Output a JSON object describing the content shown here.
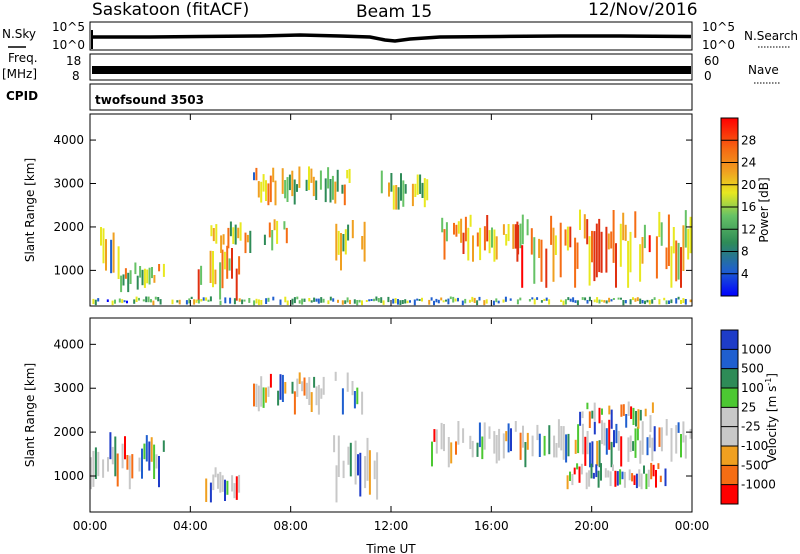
{
  "header": {
    "station": "Saskatoon (fitACF)",
    "beam": "Beam 15",
    "date": "12/Nov/2016"
  },
  "side_labels": {
    "nsky": "N.Sky",
    "freq": "Freq.",
    "freq_unit": "[MHz]",
    "cpid": "CPID",
    "nsearch": "N.Search",
    "nave": "Nave"
  },
  "strip": {
    "nsky_ticks": [
      "10^5",
      "10^0"
    ],
    "nsearch_ticks": [
      "10^5",
      "10^0"
    ],
    "freq_ticks": [
      "18",
      "8"
    ],
    "nave_ticks": [
      "60",
      "0"
    ],
    "cpid_text": "twofsound 3503"
  },
  "colors": {
    "power": [
      "#0000ff",
      "#1f5fcf",
      "#2e8b57",
      "#66c266",
      "#e8e820",
      "#f0a020",
      "#f56d14",
      "#e03010",
      "#ff0000"
    ],
    "velocity": [
      "#1e3cc8",
      "#1f5fcf",
      "#2e8b57",
      "#4cc832",
      "#c8c8c8",
      "#c8c8c8",
      "#f0a020",
      "#f56d14",
      "#ff0000"
    ],
    "ground_scatter": "#c0c0c0"
  },
  "chart_data": [
    {
      "type": "heatmap",
      "name": "power",
      "xlabel": "",
      "ylabel": "Slant Range [km]",
      "ylim": [
        180,
        4600
      ],
      "x_ticks": [
        "00:00",
        "04:00",
        "08:00",
        "12:00",
        "16:00",
        "20:00",
        "00:00"
      ],
      "y_ticks": [
        1000,
        2000,
        3000,
        4000
      ],
      "colorbar": {
        "label": "Power [dB]",
        "ticks": [
          "4",
          "8",
          "12",
          "16",
          "20",
          "24",
          "28"
        ]
      },
      "echo_regions": [
        {
          "t": [
            0.3,
            1.2
          ],
          "r": [
            800,
            2200
          ],
          "level": 0.25
        },
        {
          "t": [
            1.2,
            3.0
          ],
          "r": [
            500,
            1200
          ],
          "level": 0.3
        },
        {
          "t": [
            4.2,
            6.0
          ],
          "r": [
            300,
            1600
          ],
          "level": 0.55
        },
        {
          "t": [
            4.8,
            8.0
          ],
          "r": [
            1400,
            2200
          ],
          "level": 0.35
        },
        {
          "t": [
            6.5,
            10.5
          ],
          "r": [
            2500,
            3400
          ],
          "level": 0.3
        },
        {
          "t": [
            9.5,
            11.0
          ],
          "r": [
            1000,
            2400
          ],
          "level": 0.35
        },
        {
          "t": [
            11.5,
            13.5
          ],
          "r": [
            2400,
            3400
          ],
          "level": 0.25
        },
        {
          "t": [
            14.0,
            17.5
          ],
          "r": [
            1200,
            2300
          ],
          "level": 0.5
        },
        {
          "t": [
            17.0,
            24.0
          ],
          "r": [
            600,
            2400
          ],
          "level": 0.6
        },
        {
          "t": [
            0.0,
            24.0
          ],
          "r": [
            200,
            400
          ],
          "level": 0.15
        }
      ]
    },
    {
      "type": "heatmap",
      "name": "velocity",
      "xlabel": "Time UT",
      "ylabel": "Slant Range [km]",
      "ylim": [
        180,
        4600
      ],
      "x_ticks": [
        "00:00",
        "04:00",
        "08:00",
        "12:00",
        "16:00",
        "20:00",
        "00:00"
      ],
      "y_ticks": [
        1000,
        2000,
        3000,
        4000
      ],
      "colorbar": {
        "label": "Velocity [m s^-1]",
        "ticks": [
          "1000",
          "500",
          "100",
          "25",
          "-25",
          "-100",
          "-500",
          "-1000"
        ]
      },
      "echo_regions": [
        {
          "t": [
            0.0,
            3.0
          ],
          "r": [
            700,
            2000
          ],
          "level": 0.45
        },
        {
          "t": [
            4.5,
            6.0
          ],
          "r": [
            400,
            1200
          ],
          "level": 0.3
        },
        {
          "t": [
            6.5,
            11.0
          ],
          "r": [
            2400,
            3400
          ],
          "level": 0.45
        },
        {
          "t": [
            9.5,
            11.5
          ],
          "r": [
            400,
            2000
          ],
          "level": 0.65
        },
        {
          "t": [
            13.5,
            24.0
          ],
          "r": [
            1200,
            2300
          ],
          "level": 0.45
        },
        {
          "t": [
            19.0,
            23.0
          ],
          "r": [
            700,
            1300
          ],
          "level": 0.2
        },
        {
          "t": [
            19.5,
            22.5
          ],
          "r": [
            2000,
            2700
          ],
          "level": 0.15
        }
      ]
    }
  ]
}
